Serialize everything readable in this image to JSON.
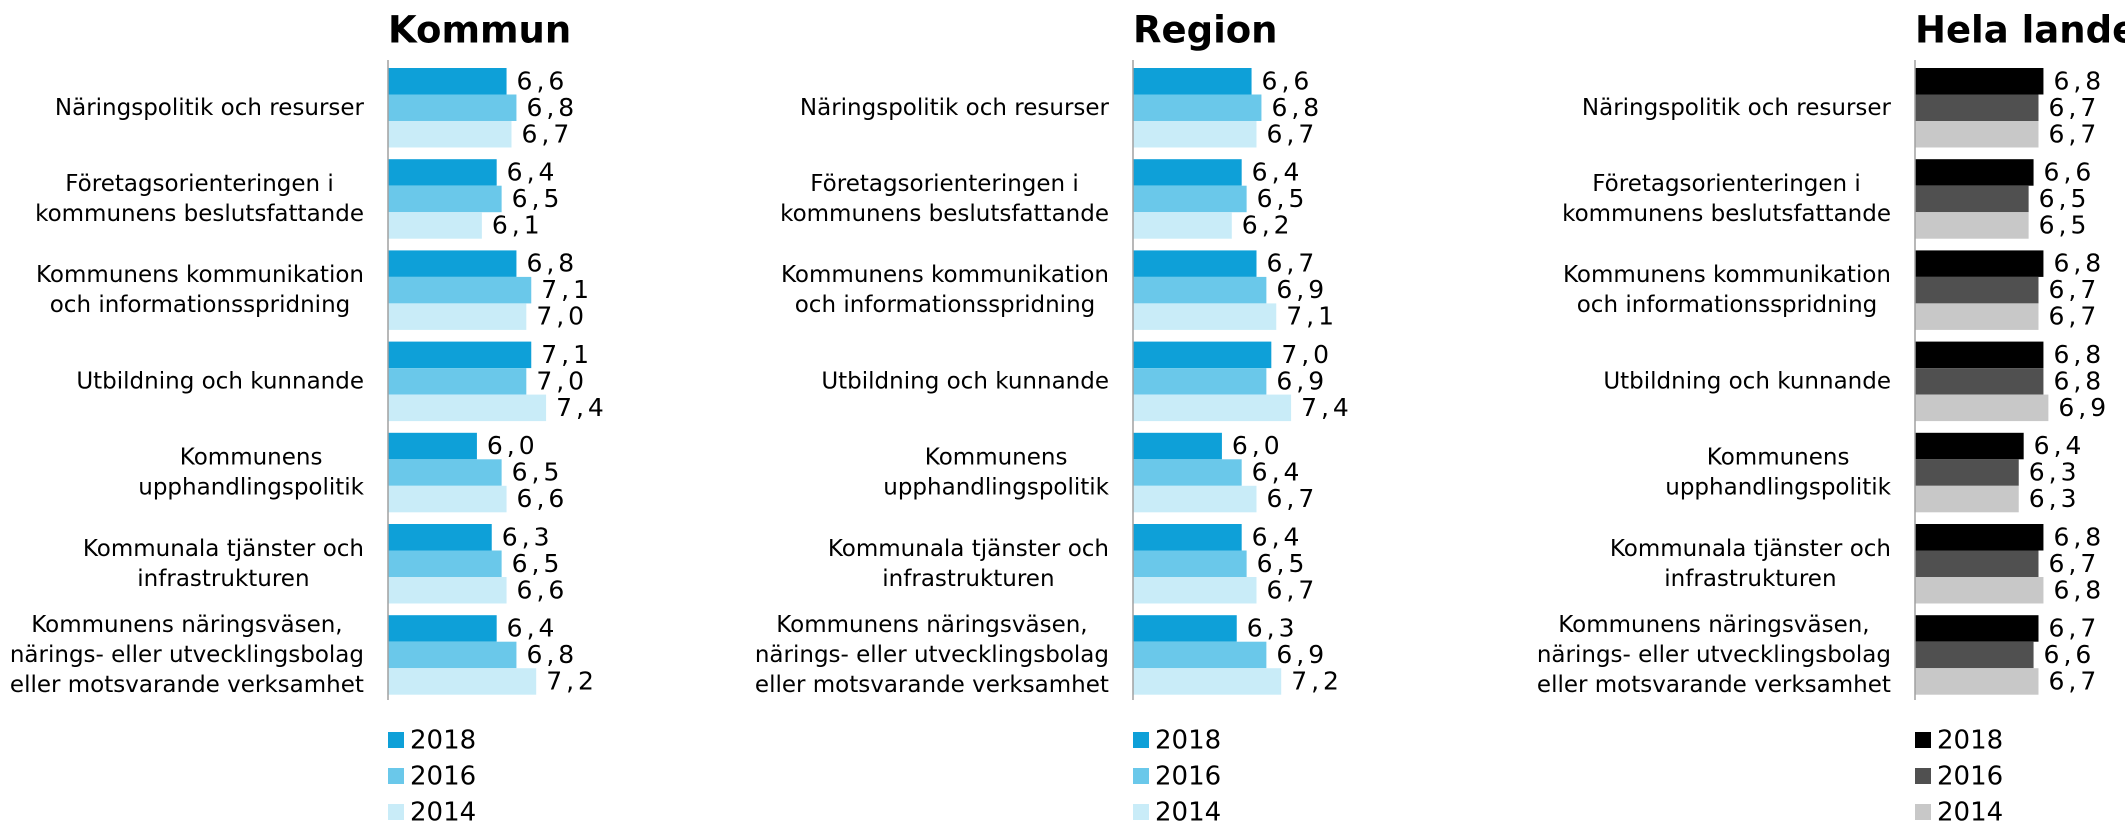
{
  "chart_data": [
    {
      "type": "bar",
      "title": "Kommun",
      "categories": [
        "Näringspolitik och resurser",
        "Företagsorienteringen i\nkommunens beslutsfattande",
        "Kommunens kommunikation\noch informationsspridning",
        "Utbildning och kunnande",
        "Kommunens\nupphandlingspolitik",
        "Kommunala tjänster och\ninfrastrukturen",
        "Kommunens näringsväsen,\nnärings- eller utvecklingsbolag\neller motsvarande verksamhet"
      ],
      "xlim": [
        4.2,
        8
      ],
      "series": [
        {
          "name": "2018",
          "color": "#0ea0d8",
          "values": [
            6.6,
            6.4,
            6.8,
            7.1,
            6.0,
            6.3,
            6.4
          ],
          "value_labels": [
            "6,6",
            "6,4",
            "6,8",
            "7,1",
            "6,0",
            "6,3",
            "6,4"
          ]
        },
        {
          "name": "2016",
          "color": "#6ac8ea",
          "values": [
            6.8,
            6.5,
            7.1,
            7.0,
            6.5,
            6.5,
            6.8
          ],
          "value_labels": [
            "6,8",
            "6,5",
            "7,1",
            "7,0",
            "6,5",
            "6,5",
            "6,8"
          ]
        },
        {
          "name": "2014",
          "color": "#c9ecf8",
          "values": [
            6.7,
            6.1,
            7.0,
            7.4,
            6.6,
            6.6,
            7.2
          ],
          "value_labels": [
            "6,7",
            "6,1",
            "7,0",
            "7,4",
            "6,6",
            "6,6",
            "7,2"
          ]
        }
      ]
    },
    {
      "type": "bar",
      "title": "Region",
      "categories": [
        "Näringspolitik och resurser",
        "Företagsorienteringen i\nkommunens beslutsfattande",
        "Kommunens kommunikation\noch informationsspridning",
        "Utbildning och kunnande",
        "Kommunens\nupphandlingspolitik",
        "Kommunala tjänster och\ninfrastrukturen",
        "Kommunens näringsväsen,\nnärings- eller utvecklingsbolag\neller motsvarande verksamhet"
      ],
      "xlim": [
        4.2,
        8
      ],
      "series": [
        {
          "name": "2018",
          "color": "#0ea0d8",
          "values": [
            6.6,
            6.4,
            6.7,
            7.0,
            6.0,
            6.4,
            6.3
          ],
          "value_labels": [
            "6,6",
            "6,4",
            "6,7",
            "7,0",
            "6,0",
            "6,4",
            "6,3"
          ]
        },
        {
          "name": "2016",
          "color": "#6ac8ea",
          "values": [
            6.8,
            6.5,
            6.9,
            6.9,
            6.4,
            6.5,
            6.9
          ],
          "value_labels": [
            "6,8",
            "6,5",
            "6,9",
            "6,9",
            "6,4",
            "6,5",
            "6,9"
          ]
        },
        {
          "name": "2014",
          "color": "#c9ecf8",
          "values": [
            6.7,
            6.2,
            7.1,
            7.4,
            6.7,
            6.7,
            7.2
          ],
          "value_labels": [
            "6,7",
            "6,2",
            "7,1",
            "7,4",
            "6,7",
            "6,7",
            "7,2"
          ]
        }
      ]
    },
    {
      "type": "bar",
      "title": "Hela landet",
      "categories": [
        "Näringspolitik och resurser",
        "Företagsorienteringen i\nkommunens beslutsfattande",
        "Kommunens kommunikation\noch informationsspridning",
        "Utbildning och kunnande",
        "Kommunens\nupphandlingspolitik",
        "Kommunala tjänster och\ninfrastrukturen",
        "Kommunens näringsväsen,\nnärings- eller utvecklingsbolag\neller motsvarande verksamhet"
      ],
      "xlim": [
        4.2,
        8
      ],
      "series": [
        {
          "name": "2018",
          "color": "#000000",
          "values": [
            6.8,
            6.6,
            6.8,
            6.8,
            6.4,
            6.8,
            6.7
          ],
          "value_labels": [
            "6,8",
            "6,6",
            "6,8",
            "6,8",
            "6,4",
            "6,8",
            "6,7"
          ]
        },
        {
          "name": "2016",
          "color": "#505050",
          "values": [
            6.7,
            6.5,
            6.7,
            6.8,
            6.3,
            6.7,
            6.6
          ],
          "value_labels": [
            "6,7",
            "6,5",
            "6,7",
            "6,8",
            "6,3",
            "6,7",
            "6,6"
          ]
        },
        {
          "name": "2014",
          "color": "#c8c8c8",
          "values": [
            6.7,
            6.5,
            6.7,
            6.9,
            6.3,
            6.8,
            6.7
          ],
          "value_labels": [
            "6,7",
            "6,5",
            "6,7",
            "6,9",
            "6,3",
            "6,8",
            "6,7"
          ]
        }
      ]
    }
  ]
}
